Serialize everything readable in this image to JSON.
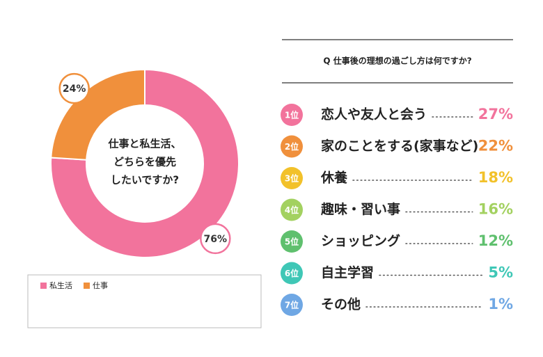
{
  "chart_data": [
    {
      "type": "pie",
      "center_text": [
        "仕事と私生活、",
        "どちらを優先",
        "したいですか?"
      ],
      "categories": [
        "私生活",
        "仕事"
      ],
      "values": [
        76,
        24
      ],
      "value_labels": [
        "76%",
        "24%"
      ],
      "colors": [
        "#f2739c",
        "#f0903c"
      ]
    },
    {
      "type": "ranking",
      "title": "Q 仕事後の理想の過ごし方は何ですか?",
      "rank_labels": [
        "1位",
        "2位",
        "3位",
        "4位",
        "5位",
        "6位",
        "7位"
      ],
      "categories": [
        "恋人や友人と会う",
        "家のことをする(家事など)",
        "休養",
        "趣味・習い事",
        "ショッピング",
        "自主学習",
        "その他"
      ],
      "values": [
        27,
        22,
        18,
        16,
        12,
        5,
        1
      ],
      "value_labels": [
        "27%",
        "22%",
        "18%",
        "16%",
        "12%",
        "5%",
        "1%"
      ],
      "colors": [
        "#f2739c",
        "#f0903c",
        "#f2c12a",
        "#a3d160",
        "#5fc06e",
        "#3fc7b6",
        "#6fa7e4"
      ]
    }
  ]
}
